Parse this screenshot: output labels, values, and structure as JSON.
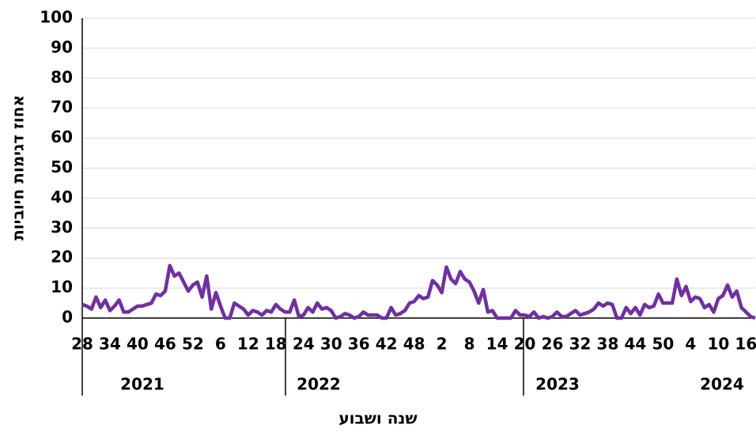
{
  "chart_data": {
    "type": "line",
    "y_label": "אחוז דגימות חיוביות",
    "x_label": "שנה ושבוע",
    "categories": [
      "28",
      null,
      null,
      null,
      null,
      null,
      "34",
      null,
      null,
      null,
      null,
      null,
      "40",
      null,
      null,
      null,
      null,
      null,
      "46",
      null,
      null,
      null,
      null,
      null,
      "52",
      null,
      null,
      null,
      null,
      null,
      "6",
      null,
      null,
      null,
      null,
      null,
      "12",
      null,
      null,
      null,
      null,
      null,
      "18",
      null,
      null,
      null,
      null,
      null,
      "24",
      null,
      null,
      null,
      null,
      null,
      "30",
      null,
      null,
      null,
      null,
      null,
      "36",
      null,
      null,
      null,
      null,
      null,
      "42",
      null,
      null,
      null,
      null,
      null,
      "48",
      null,
      null,
      null,
      null,
      null,
      "2",
      null,
      null,
      null,
      null,
      null,
      "8",
      null,
      null,
      null,
      null,
      null,
      "14",
      null,
      null,
      null,
      null,
      null,
      "20",
      null,
      null,
      null,
      null,
      null,
      "26",
      null,
      null,
      null,
      null,
      null,
      "32",
      null,
      null,
      null,
      null,
      null,
      "38",
      null,
      null,
      null,
      null,
      null,
      "44",
      null,
      null,
      null,
      null,
      null,
      "50",
      null,
      null,
      null,
      null,
      null,
      "4",
      null,
      null,
      null,
      null,
      null,
      "10",
      null,
      null,
      null,
      null,
      null,
      "16",
      null,
      null
    ],
    "x_groups": [
      "2021",
      "2022",
      "2023",
      "2024"
    ],
    "series": [
      {
        "color": "#7030a0",
        "values": [
          4.5,
          4,
          3,
          7,
          3.5,
          6,
          2.5,
          4,
          6,
          2,
          2,
          3,
          4,
          4,
          4.5,
          5,
          8,
          7.5,
          9,
          17.5,
          14,
          15,
          12,
          9,
          11,
          12,
          7,
          14,
          3,
          8.5,
          4,
          0,
          0,
          5,
          4,
          3,
          1,
          2.5,
          2,
          1,
          2.5,
          2,
          4.5,
          3,
          2,
          2,
          6,
          0.5,
          1,
          3.5,
          2,
          5,
          3,
          3.5,
          2.5,
          0,
          0.5,
          1.5,
          1,
          0,
          0.5,
          2,
          1,
          1,
          1,
          0,
          0,
          3.5,
          1,
          1.5,
          2.5,
          5,
          5.5,
          7.5,
          6.5,
          7,
          12.5,
          11,
          8.5,
          17,
          13,
          11.5,
          15.5,
          13,
          12,
          9,
          5,
          9.5,
          2,
          2.5,
          0,
          0,
          0,
          0,
          2.5,
          1,
          1,
          0.5,
          2,
          0,
          0.5,
          0,
          0.5,
          2,
          0.5,
          0.5,
          1.5,
          2.5,
          1,
          1.5,
          2,
          3,
          5,
          4,
          5,
          4.5,
          0,
          0,
          3.5,
          1.5,
          3.5,
          1,
          4.5,
          3.5,
          4,
          8,
          5,
          5,
          5,
          13,
          7.5,
          10.5,
          5.5,
          7,
          6.5,
          3.5,
          4.5,
          2,
          6.5,
          7.5,
          11,
          7,
          9,
          3.5,
          2,
          0.5,
          0
        ]
      }
    ],
    "ylim": [
      0,
      100
    ],
    "yticks": [
      0,
      10,
      20,
      30,
      40,
      50,
      60,
      70,
      80,
      90,
      100
    ],
    "grid": true
  }
}
